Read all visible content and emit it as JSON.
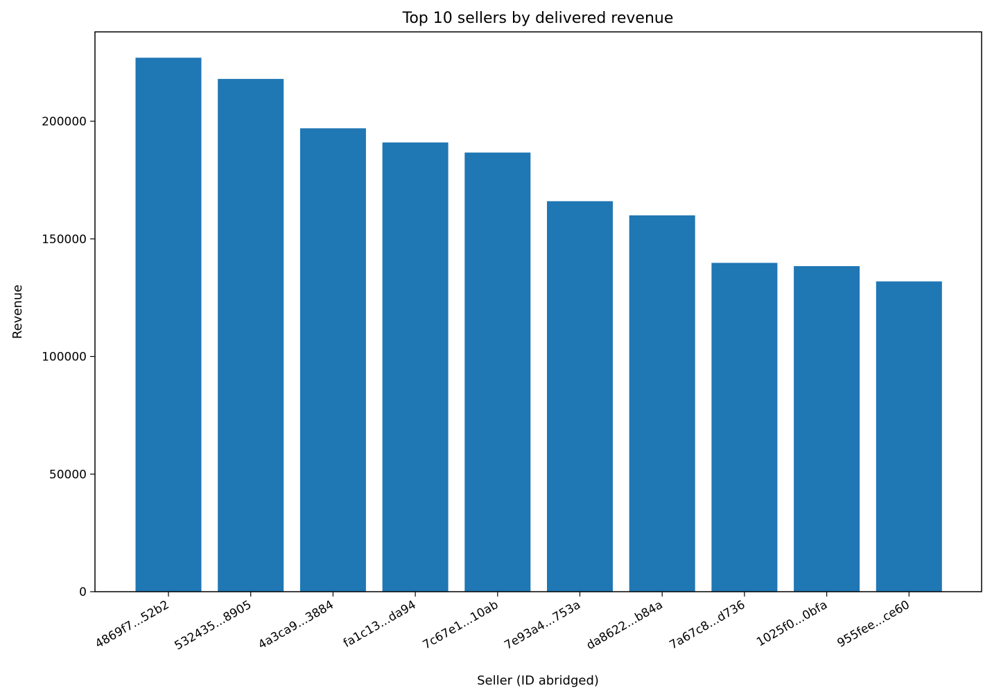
{
  "chart_data": {
    "type": "bar",
    "title": "Top 10 sellers by delivered revenue",
    "xlabel": "Seller (ID abridged)",
    "ylabel": "Revenue",
    "categories": [
      "4869f7...52b2",
      "532435...8905",
      "4a3ca9...3884",
      "fa1c13...da94",
      "7c67e1...10ab",
      "7e93a4...753a",
      "da8622...b84a",
      "7a67c8...d736",
      "1025f0...0bfa",
      "955fee...ce60"
    ],
    "values": [
      227000,
      218000,
      197000,
      191000,
      186700,
      166000,
      160000,
      139800,
      138400,
      131900
    ],
    "ylim": [
      0,
      238000
    ],
    "yticks": [
      0,
      50000,
      100000,
      150000,
      200000
    ],
    "ytick_labels": [
      "0",
      "50000",
      "100000",
      "150000",
      "200000"
    ],
    "bar_color": "#1f77b4",
    "grid": false,
    "legend": "none"
  }
}
